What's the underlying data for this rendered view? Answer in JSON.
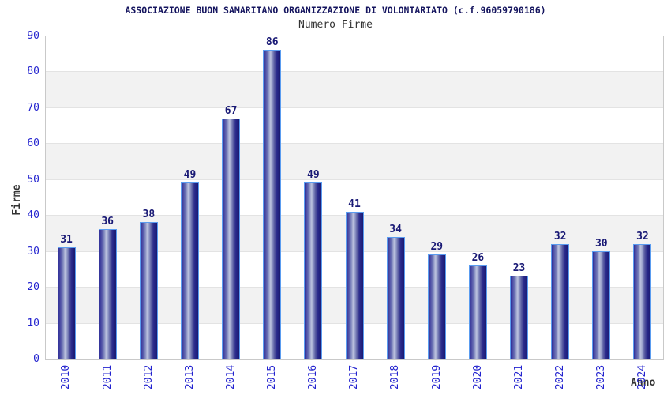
{
  "chart_data": {
    "type": "bar",
    "title": "ASSOCIAZIONE BUON SAMARITANO ORGANIZZAZIONE DI VOLONTARIATO (c.f.96059790186)",
    "subtitle": "Numero Firme",
    "categories": [
      "2010",
      "2011",
      "2012",
      "2013",
      "2014",
      "2015",
      "2016",
      "2017",
      "2018",
      "2019",
      "2020",
      "2021",
      "2022",
      "2023",
      "2024"
    ],
    "values": [
      31,
      36,
      38,
      49,
      67,
      86,
      49,
      41,
      34,
      29,
      26,
      23,
      32,
      30,
      32
    ],
    "xlabel": "Anno",
    "ylabel": "Firme",
    "ylim": [
      0,
      90
    ],
    "ytick_step": 10,
    "yticks": [
      0,
      10,
      20,
      30,
      40,
      50,
      60,
      70,
      80,
      90
    ],
    "grid": true,
    "legend_position": "none",
    "band_shading": "alternating horizontal stripes every 10 units, white and gray, white at top",
    "colors": {
      "title": "#14145e",
      "subtitle": "#333333",
      "axis_tick_label": "#2323cf",
      "bar_value_label": "#191975",
      "bar_border": "#5a9cf0",
      "bar_gradient_dark": "#31319a",
      "bar_gradient_highlight": "#bcc2de",
      "bar_gradient_edge": "#1a1a70",
      "band_gray": "#f2f2f2",
      "grid_line": "#e3e3e3",
      "plot_border": "#c9c9c9",
      "background": "#ffffff"
    }
  }
}
